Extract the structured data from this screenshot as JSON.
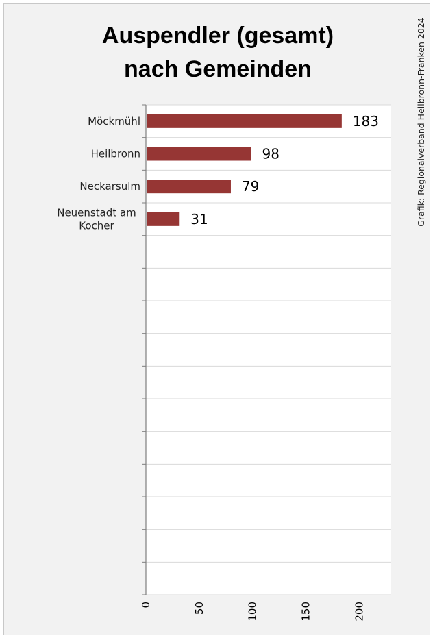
{
  "chart_data": {
    "type": "bar",
    "orientation": "horizontal",
    "title_lines": [
      "Auspendler (gesamt)",
      "nach Gemeinden"
    ],
    "categories": [
      [
        "Möckmühl"
      ],
      [
        "Heilbronn"
      ],
      [
        "Neckarsulm"
      ],
      [
        "Neuenstadt am",
        "Kocher"
      ]
    ],
    "values": [
      183,
      98,
      79,
      31
    ],
    "xlim": [
      0,
      230
    ],
    "xticks": [
      "0",
      "50",
      "100",
      "150",
      "200"
    ],
    "xtick_values": [
      0,
      50,
      100,
      150,
      200
    ],
    "slots": 15,
    "bar_color": "#963634",
    "grid": true,
    "source": "Grafik: Regionalverband Heilbronn-Franken 2024"
  }
}
